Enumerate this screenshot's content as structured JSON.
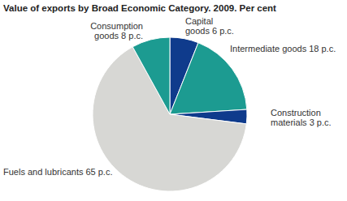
{
  "chart_data": {
    "type": "pie",
    "title": "Value of exports by Broad Economic Category. 2009. Per cent",
    "categories": [
      "Capital goods",
      "Intermediate goods",
      "Construction materials",
      "Fuels and lubricants",
      "Consumption goods"
    ],
    "values": [
      6,
      18,
      3,
      65,
      8
    ],
    "value_labels": [
      "6 p.c.",
      "18 p.c.",
      "3 p.c.",
      "65 p.c.",
      "8 p.c."
    ],
    "colors": [
      "#0f3b8c",
      "#1c9b91",
      "#0f3b8c",
      "#d7d7d4",
      "#1c9b91"
    ],
    "data_labels": true
  }
}
